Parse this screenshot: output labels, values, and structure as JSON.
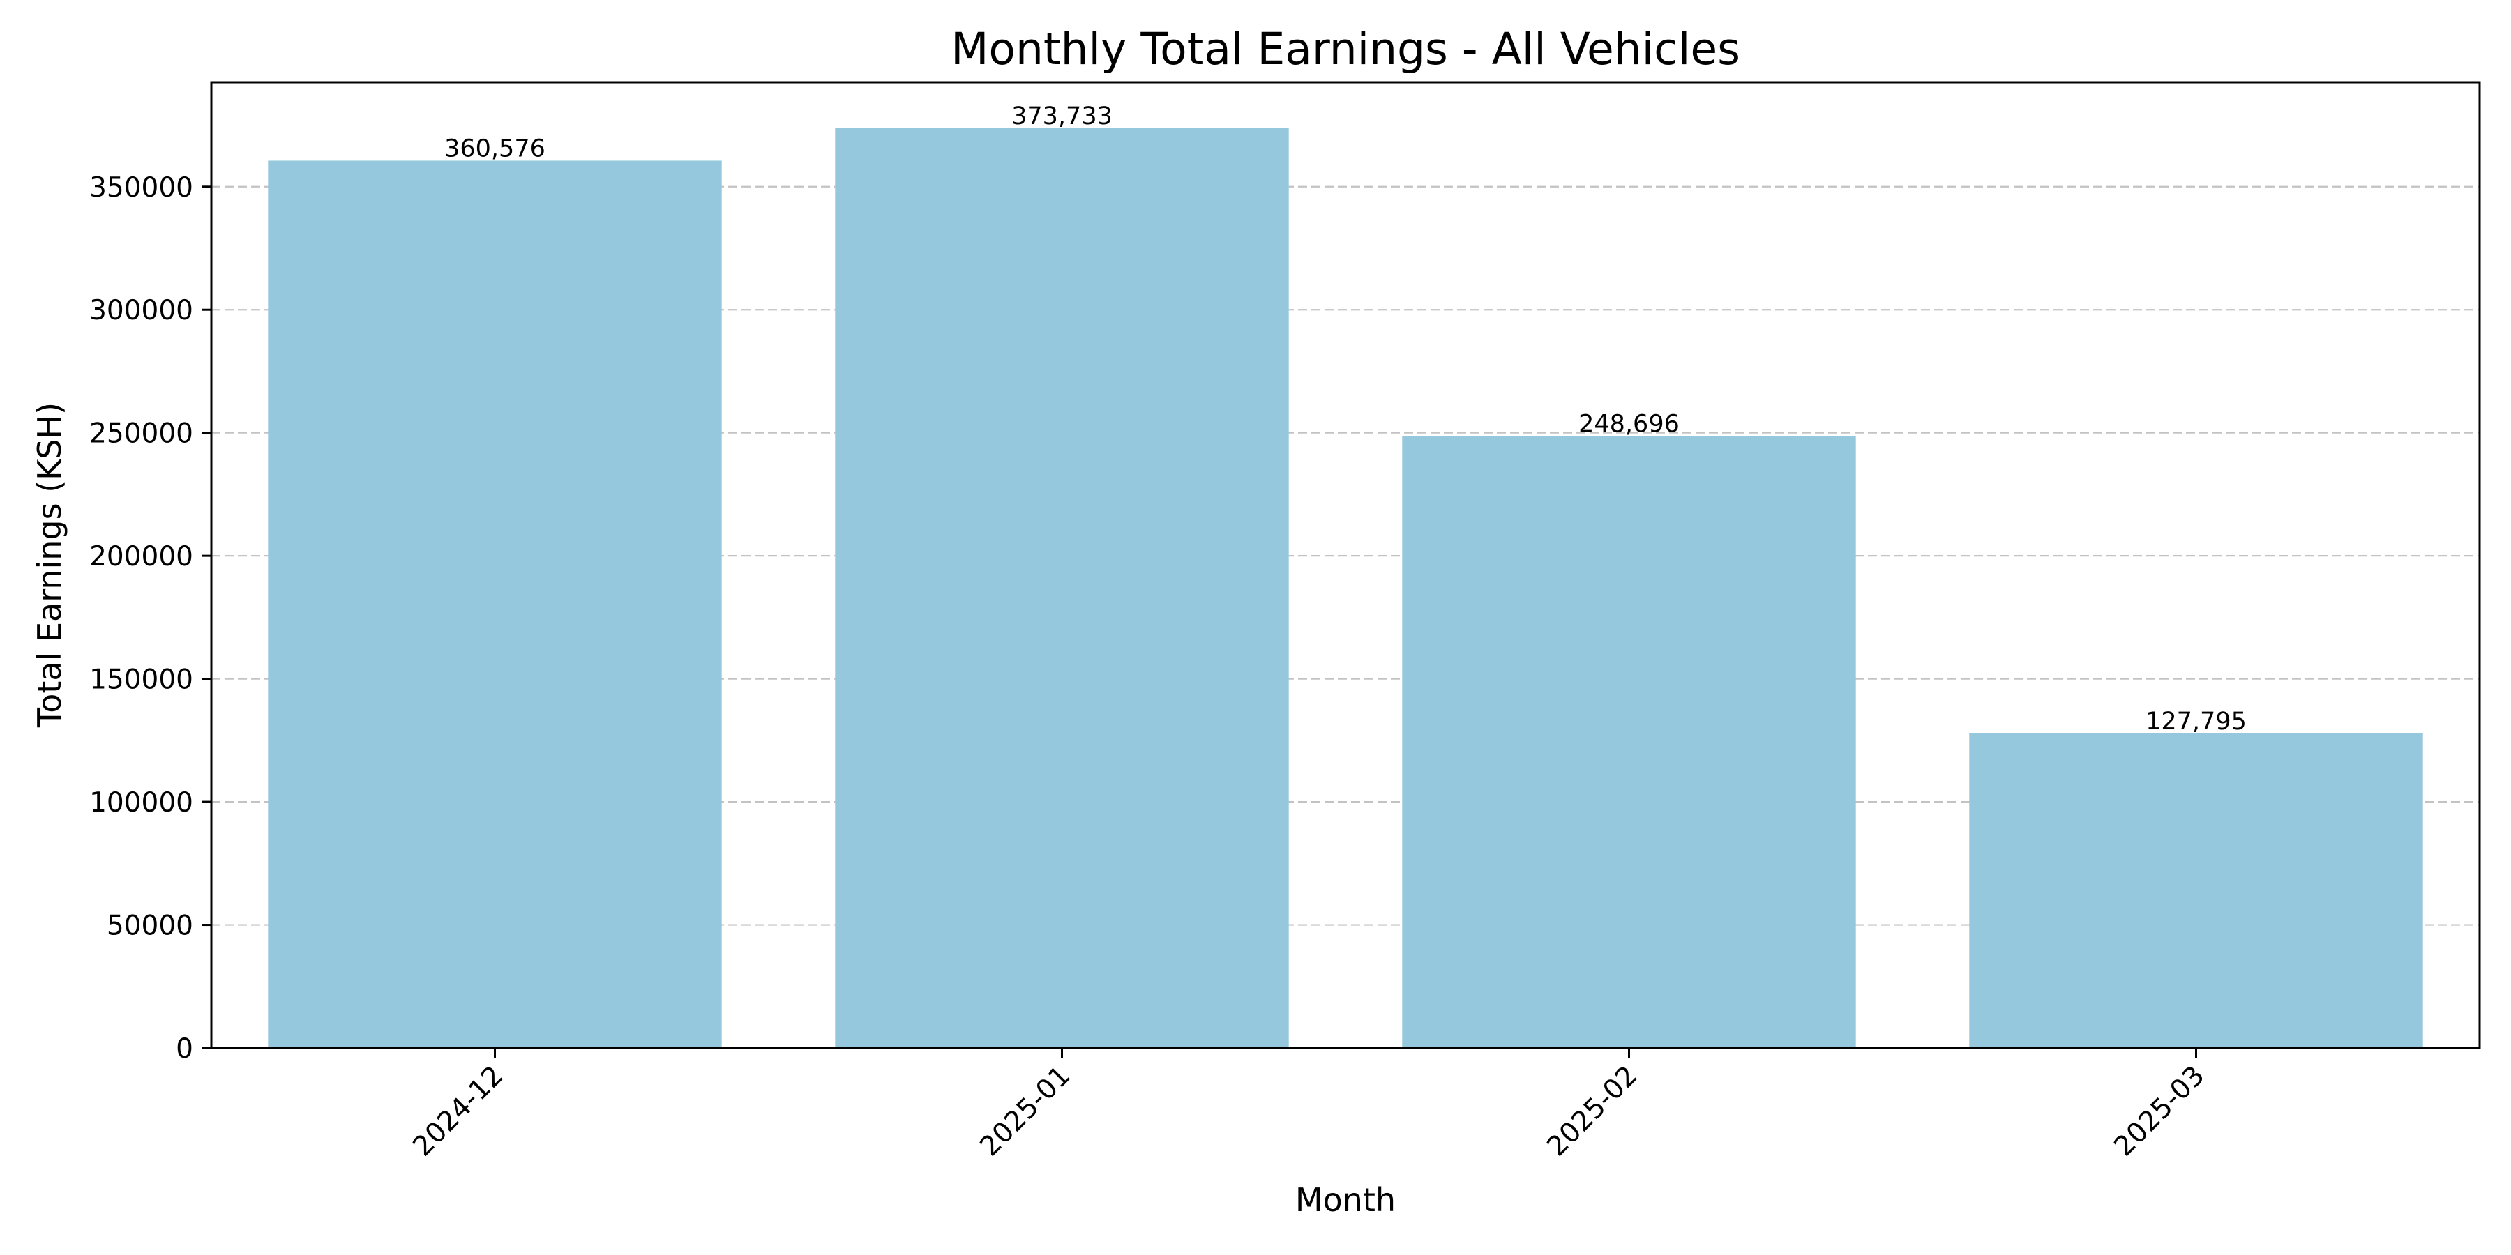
{
  "chart_data": {
    "type": "bar",
    "title": "Monthly Total Earnings - All Vehicles",
    "xlabel": "Month",
    "ylabel": "Total Earnings (KSH)",
    "categories": [
      "2024-12",
      "2025-01",
      "2025-02",
      "2025-03"
    ],
    "values": [
      360576,
      373733,
      248696,
      127795
    ],
    "data_labels": [
      "360,576",
      "373,733",
      "248,696",
      "127,795"
    ],
    "ylim": [
      0,
      392439
    ],
    "y_ticks": [
      0,
      50000,
      100000,
      150000,
      200000,
      250000,
      300000,
      350000
    ],
    "y_tick_labels": [
      "0",
      "50000",
      "100000",
      "150000",
      "200000",
      "250000",
      "300000",
      "350000"
    ],
    "x_tick_rotation": 45,
    "grid": "y-axis dashed",
    "legend": "none",
    "colors": {
      "bar": "#95c8dd",
      "grid": "#b0b0b0",
      "axis": "#000000"
    }
  }
}
